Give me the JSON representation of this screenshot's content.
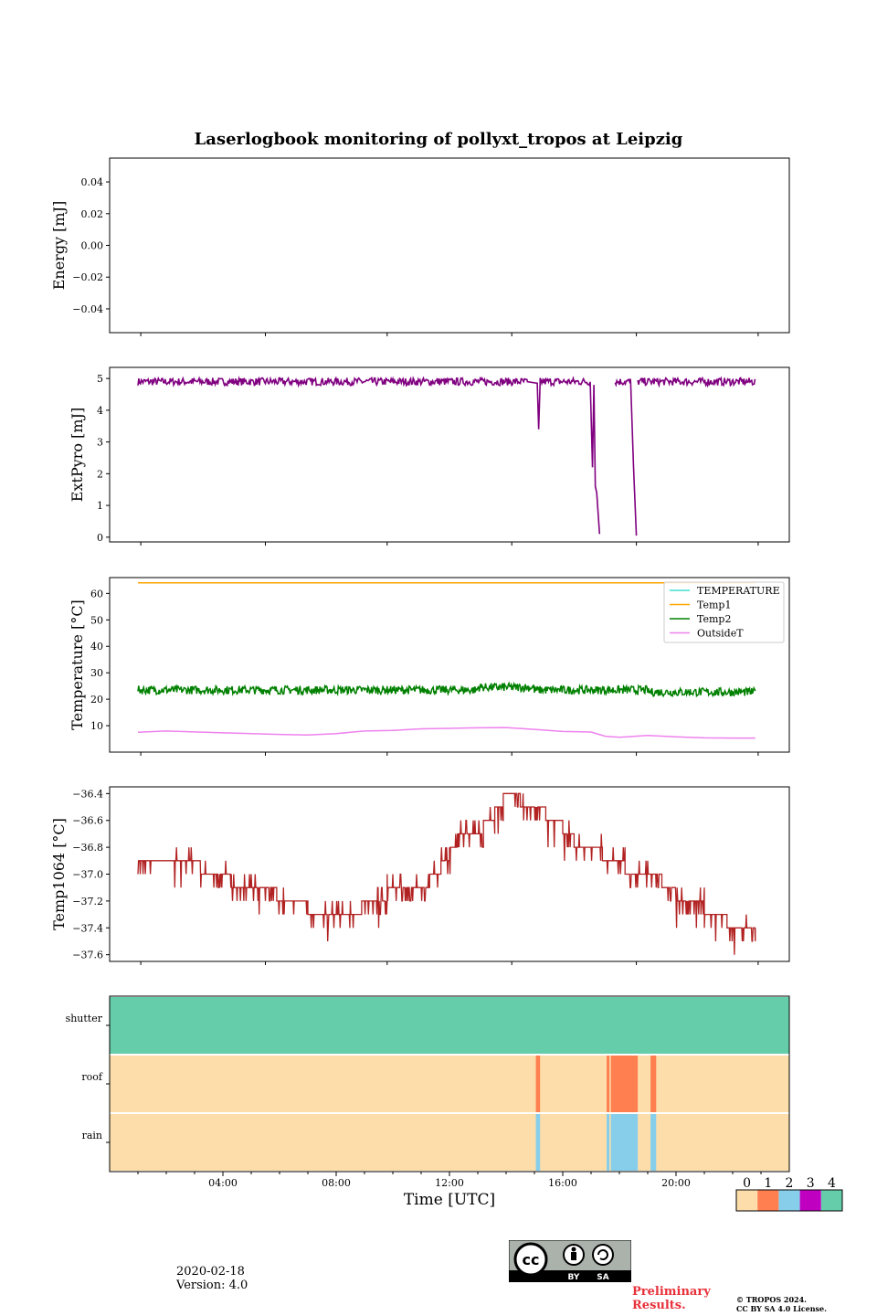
{
  "title": "Laserlogbook monitoring of pollyxt_tropos at Leipzig",
  "date": "2020-02-18",
  "version": "Version: 4.0",
  "preliminary": "Preliminary",
  "results": "Results.",
  "copyright_line1": "© TROPOS 2024.",
  "copyright_line2": "CC BY SA 4.0 License.",
  "cc_badge": {
    "by": "BY",
    "sa": "SA",
    "cc": "cc"
  },
  "chart_data": [
    {
      "type": "line",
      "name": "energy",
      "ylabel": "Energy [mJ]",
      "ylim": [
        -0.055,
        0.055
      ],
      "yticks": [
        -0.04,
        -0.02,
        0.0,
        0.02,
        0.04
      ],
      "series": []
    },
    {
      "type": "line",
      "name": "extpyro",
      "ylabel": "ExtPyro [mJ]",
      "ylim": [
        -0.15,
        5.35
      ],
      "yticks": [
        0,
        1,
        2,
        3,
        4,
        5
      ],
      "series": [
        {
          "name": "ExtPyro",
          "color": "#800080",
          "base": 4.9,
          "noise": 0.12,
          "points": [
            [
              1.0,
              4.9
            ],
            [
              14.75,
              4.9
            ],
            [
              15.1,
              4.85
            ],
            [
              15.15,
              3.4
            ],
            [
              15.2,
              4.85
            ],
            [
              17.0,
              4.85
            ],
            [
              17.05,
              2.2
            ],
            [
              17.1,
              4.8
            ],
            [
              17.15,
              1.6
            ],
            [
              17.2,
              1.4
            ],
            [
              17.3,
              0.1
            ]
          ],
          "points2": [
            [
              17.85,
              4.8
            ],
            [
              18.4,
              4.85
            ],
            [
              18.5,
              2.2
            ],
            [
              18.6,
              0.05
            ]
          ],
          "points3": [
            [
              18.65,
              4.9
            ],
            [
              22.8,
              4.9
            ]
          ]
        }
      ]
    },
    {
      "type": "line",
      "name": "temperature",
      "ylabel": "Temperature [°C]",
      "ylim": [
        0,
        66
      ],
      "yticks": [
        10,
        20,
        30,
        40,
        50,
        60
      ],
      "legend_location": "upper-right",
      "series": [
        {
          "name": "TEMPERATURE",
          "color": "#40e0d0",
          "values": []
        },
        {
          "name": "Temp1",
          "color": "#ffa500",
          "constant": 64
        },
        {
          "name": "Temp2",
          "color": "#008000",
          "base": 23.5,
          "noise": 2.0
        },
        {
          "name": "OutsideT",
          "color": "#ee82ee",
          "points": [
            [
              1,
              7.5
            ],
            [
              2,
              8
            ],
            [
              4,
              7.3
            ],
            [
              6,
              6.7
            ],
            [
              7,
              6.5
            ],
            [
              8,
              7
            ],
            [
              9,
              8
            ],
            [
              10,
              8.2
            ],
            [
              11,
              8.8
            ],
            [
              12,
              9
            ],
            [
              13,
              9.2
            ],
            [
              14,
              9.3
            ],
            [
              15,
              8.6
            ],
            [
              16,
              7.8
            ],
            [
              17,
              7.6
            ],
            [
              17.5,
              6
            ],
            [
              18,
              5.6
            ],
            [
              19,
              6.3
            ],
            [
              20,
              5.8
            ],
            [
              21,
              5.4
            ],
            [
              22,
              5.3
            ],
            [
              22.8,
              5.3
            ]
          ]
        }
      ]
    },
    {
      "type": "line",
      "name": "temp1064",
      "ylabel": "Temp1064 [°C]",
      "ylim": [
        -37.65,
        -36.35
      ],
      "yticks": [
        -37.6,
        -37.4,
        -37.2,
        -37.0,
        -36.8,
        -36.6,
        -36.4
      ],
      "series": [
        {
          "name": "Temp1064",
          "color": "#b22222",
          "steps": [
            [
              1.0,
              -36.9
            ],
            [
              3.2,
              -37.0
            ],
            [
              4.3,
              -37.1
            ],
            [
              5.9,
              -37.2
            ],
            [
              7.0,
              -37.3
            ],
            [
              8.9,
              -37.2
            ],
            [
              9.8,
              -37.1
            ],
            [
              11.3,
              -37.0
            ],
            [
              11.7,
              -36.9
            ],
            [
              12.0,
              -36.8
            ],
            [
              12.3,
              -36.7
            ],
            [
              13.2,
              -36.6
            ],
            [
              13.6,
              -36.5
            ],
            [
              13.9,
              -36.4
            ],
            [
              14.5,
              -36.5
            ],
            [
              15.4,
              -36.6
            ],
            [
              16.0,
              -36.7
            ],
            [
              16.4,
              -36.8
            ],
            [
              17.4,
              -36.9
            ],
            [
              18.2,
              -37.0
            ],
            [
              19.5,
              -37.1
            ],
            [
              20.0,
              -37.2
            ],
            [
              21.0,
              -37.3
            ],
            [
              21.8,
              -37.4
            ],
            [
              22.8,
              -37.4
            ]
          ]
        }
      ]
    },
    {
      "type": "heatmap",
      "name": "status",
      "xlabel": "Time [UTC]",
      "xlim": [
        0,
        24
      ],
      "xticks": [
        "04:00",
        "08:00",
        "12:00",
        "16:00",
        "20:00"
      ],
      "xtick_values": [
        4,
        8,
        12,
        16,
        20
      ],
      "rows": [
        "shutter",
        "roof",
        "rain"
      ],
      "colorbar": {
        "labels": [
          "0",
          "1",
          "2",
          "3",
          "4"
        ],
        "colors": [
          "#fddeaa",
          "#ff7f50",
          "#87ceeb",
          "#c000c0",
          "#66cdaa"
        ]
      },
      "cells": {
        "shutter": [
          [
            0,
            24,
            4
          ]
        ],
        "roof": [
          [
            0,
            15.05,
            0
          ],
          [
            15.05,
            15.2,
            1
          ],
          [
            15.2,
            17.55,
            0
          ],
          [
            17.55,
            17.65,
            1
          ],
          [
            17.65,
            17.7,
            0
          ],
          [
            17.7,
            18.65,
            1
          ],
          [
            18.65,
            19.1,
            0
          ],
          [
            19.1,
            19.3,
            1
          ],
          [
            19.3,
            24,
            0
          ]
        ],
        "rain": [
          [
            0,
            15.05,
            0
          ],
          [
            15.05,
            15.2,
            2
          ],
          [
            15.2,
            17.55,
            0
          ],
          [
            17.55,
            17.65,
            2
          ],
          [
            17.65,
            17.7,
            0
          ],
          [
            17.7,
            18.65,
            2
          ],
          [
            18.65,
            19.1,
            0
          ],
          [
            19.1,
            19.3,
            2
          ],
          [
            19.3,
            24,
            0
          ]
        ]
      }
    }
  ]
}
